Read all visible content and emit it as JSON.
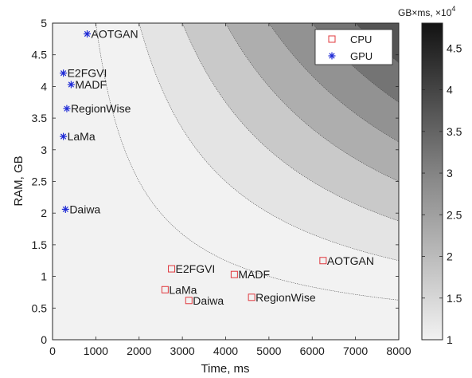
{
  "chart_data": {
    "type": "scatter",
    "subtype": "filled contour background with labeled scatter markers",
    "xlabel": "Time, ms",
    "ylabel": "RAM, GB",
    "xlim": [
      0,
      8000
    ],
    "ylim": [
      0,
      5
    ],
    "xticks": [
      0,
      1000,
      2000,
      3000,
      4000,
      5000,
      6000,
      7000,
      8000
    ],
    "xtick_labels": [
      "0",
      "1000",
      "2000",
      "3000",
      "4000",
      "5000",
      "6000",
      "7000",
      "8000"
    ],
    "yticks": [
      0,
      0.5,
      1,
      1.5,
      2,
      2.5,
      3,
      3.5,
      4,
      4.5,
      5
    ],
    "ytick_labels": [
      "0",
      "0.5",
      "1",
      "1.5",
      "2",
      "2.5",
      "3",
      "3.5",
      "4",
      "4.5",
      "5"
    ],
    "grid": false,
    "legend_position": "top-right",
    "contour": {
      "quantity": "RAM × Time",
      "levels": [
        5000,
        10000,
        15000,
        20000,
        25000,
        30000,
        35000,
        40000
      ],
      "grayscale": "white (low) to black (high)"
    },
    "colorbar": {
      "title": "GB×ms, ×10",
      "title_exponent": "4",
      "range": [
        1,
        4.8
      ],
      "ticks": [
        1,
        1.5,
        2,
        2.5,
        3,
        3.5,
        4,
        4.5
      ],
      "tick_labels": [
        "1",
        "1.5",
        "2",
        "2.5",
        "3",
        "3.5",
        "4",
        "4.5"
      ]
    },
    "series": [
      {
        "name": "CPU",
        "marker": "square",
        "color": "#e0393e",
        "points": [
          {
            "label": "AOTGAN",
            "x": 6250,
            "y": 1.25
          },
          {
            "label": "E2FGVI",
            "x": 2750,
            "y": 1.12
          },
          {
            "label": "MADF",
            "x": 4200,
            "y": 1.03
          },
          {
            "label": "LaMa",
            "x": 2600,
            "y": 0.79
          },
          {
            "label": "Daiwa",
            "x": 3150,
            "y": 0.62
          },
          {
            "label": "RegionWise",
            "x": 4600,
            "y": 0.67
          }
        ]
      },
      {
        "name": "GPU",
        "marker": "asterisk",
        "color": "#1f2bd6",
        "points": [
          {
            "label": "AOTGAN",
            "x": 800,
            "y": 4.83
          },
          {
            "label": "E2FGVI",
            "x": 250,
            "y": 4.21
          },
          {
            "label": "MADF",
            "x": 430,
            "y": 4.03
          },
          {
            "label": "RegionWise",
            "x": 330,
            "y": 3.65
          },
          {
            "label": "LaMa",
            "x": 250,
            "y": 3.21
          },
          {
            "label": "Daiwa",
            "x": 300,
            "y": 2.06
          }
        ]
      }
    ]
  }
}
